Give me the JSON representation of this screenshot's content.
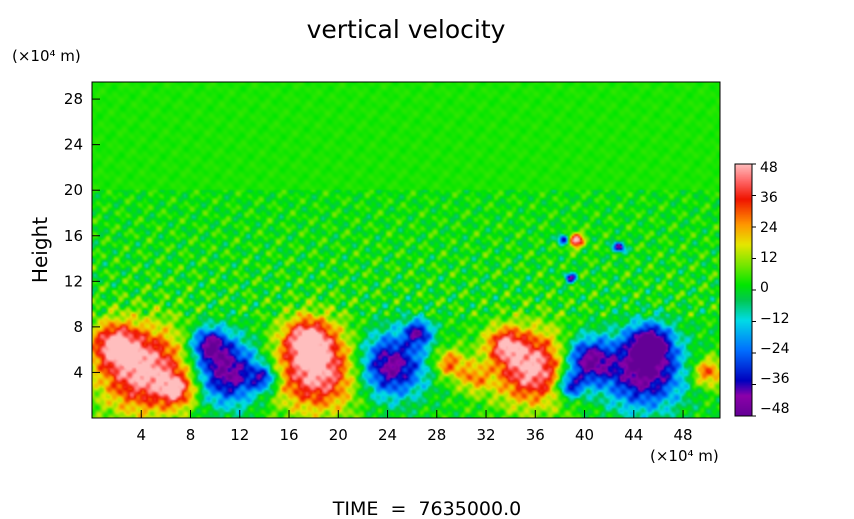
{
  "chart_data": {
    "type": "heatmap",
    "title": "vertical velocity",
    "ylabel": "Height",
    "xunit": "(×10⁴ m)",
    "yunit": "(×10⁴ m)",
    "footer": "TIME  =  7635000.0",
    "xlim": [
      0,
      51
    ],
    "ylim": [
      0,
      29.5
    ],
    "xticks": [
      4,
      8,
      12,
      16,
      20,
      24,
      28,
      32,
      36,
      40,
      44,
      48
    ],
    "yticks": [
      4,
      8,
      12,
      16,
      20,
      24,
      28
    ],
    "colorbar": {
      "range": [
        -48,
        48
      ],
      "ticks": [
        48,
        36,
        24,
        12,
        0,
        -12,
        -24,
        -36,
        -48
      ]
    },
    "background_value": 2,
    "features": [
      {
        "x": 4.3,
        "y": 4.2,
        "w": 4.0,
        "value": 48
      },
      {
        "x": 1.8,
        "y": 6.5,
        "w": 2.0,
        "value": 34
      },
      {
        "x": 7.0,
        "y": 2.5,
        "w": 1.6,
        "value": 30
      },
      {
        "x": 11.0,
        "y": 4.0,
        "w": 3.0,
        "value": -48
      },
      {
        "x": 9.5,
        "y": 6.5,
        "w": 1.6,
        "value": -38
      },
      {
        "x": 14.0,
        "y": 3.5,
        "w": 1.2,
        "value": -30
      },
      {
        "x": 18.3,
        "y": 4.2,
        "w": 3.8,
        "value": 48
      },
      {
        "x": 17.5,
        "y": 7.0,
        "w": 2.0,
        "value": 34
      },
      {
        "x": 24.2,
        "y": 4.6,
        "w": 3.0,
        "value": -48
      },
      {
        "x": 26.5,
        "y": 7.5,
        "w": 1.2,
        "value": -36
      },
      {
        "x": 29.0,
        "y": 4.8,
        "w": 1.4,
        "value": 28
      },
      {
        "x": 31.0,
        "y": 3.5,
        "w": 1.4,
        "value": 20
      },
      {
        "x": 35.8,
        "y": 4.4,
        "w": 3.4,
        "value": 48
      },
      {
        "x": 33.5,
        "y": 6.5,
        "w": 1.6,
        "value": 30
      },
      {
        "x": 40.2,
        "y": 5.0,
        "w": 2.2,
        "value": -48
      },
      {
        "x": 38.8,
        "y": 2.8,
        "w": 1.2,
        "value": -38
      },
      {
        "x": 44.8,
        "y": 4.0,
        "w": 3.4,
        "value": -48
      },
      {
        "x": 45.3,
        "y": 6.5,
        "w": 1.8,
        "value": -44
      },
      {
        "x": 50.0,
        "y": 4.0,
        "w": 1.4,
        "value": 30
      },
      {
        "x": 39.3,
        "y": 15.6,
        "w": 0.7,
        "value": 46
      },
      {
        "x": 38.3,
        "y": 15.7,
        "w": 0.5,
        "value": -40
      },
      {
        "x": 42.8,
        "y": 15.0,
        "w": 0.5,
        "value": -46
      },
      {
        "x": 38.9,
        "y": 12.3,
        "w": 0.5,
        "value": -38
      }
    ]
  }
}
